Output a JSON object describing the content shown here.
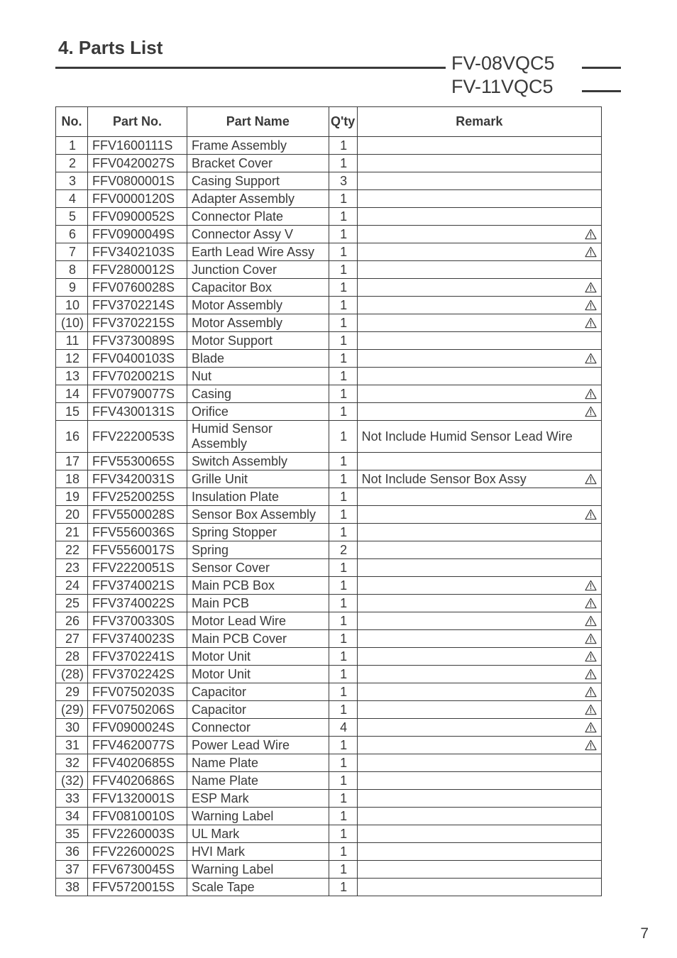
{
  "page_title": "4. Parts List",
  "models": [
    "FV-08VQC5",
    "FV-11VQC5"
  ],
  "page_number": "7",
  "columns": [
    "No.",
    "Part No.",
    "Part Name",
    "Q'ty",
    "Remark"
  ],
  "colors": {
    "text": "#3a3a3a",
    "border": "#3a3a3a",
    "background": "#ffffff"
  },
  "rows": [
    {
      "no": "1",
      "part": "FFV1600111S",
      "name": "Frame Assembly",
      "qty": "1",
      "rem": "",
      "warn": false
    },
    {
      "no": "2",
      "part": "FFV0420027S",
      "name": "Bracket Cover",
      "qty": "1",
      "rem": "",
      "warn": false
    },
    {
      "no": "3",
      "part": "FFV0800001S",
      "name": "Casing Support",
      "qty": "3",
      "rem": "",
      "warn": false
    },
    {
      "no": "4",
      "part": "FFV0000120S",
      "name": "Adapter Assembly",
      "qty": "1",
      "rem": "",
      "warn": false
    },
    {
      "no": "5",
      "part": "FFV0900052S",
      "name": "Connector Plate",
      "qty": "1",
      "rem": "",
      "warn": false
    },
    {
      "no": "6",
      "part": "FFV0900049S",
      "name": "Connector Assy V",
      "qty": "1",
      "rem": "",
      "warn": true
    },
    {
      "no": "7",
      "part": "FFV3402103S",
      "name": "Earth Lead Wire Assy",
      "qty": "1",
      "rem": "",
      "warn": true
    },
    {
      "no": "8",
      "part": "FFV2800012S",
      "name": "Junction Cover",
      "qty": "1",
      "rem": "",
      "warn": false
    },
    {
      "no": "9",
      "part": "FFV0760028S",
      "name": "Capacitor Box",
      "qty": "1",
      "rem": "",
      "warn": true
    },
    {
      "no": "10",
      "part": "FFV3702214S",
      "name": "Motor Assembly",
      "qty": "1",
      "rem": "",
      "warn": true
    },
    {
      "no": "(10)",
      "part": "FFV3702215S",
      "name": "Motor Assembly",
      "qty": "1",
      "rem": "",
      "warn": true
    },
    {
      "no": "11",
      "part": "FFV3730089S",
      "name": "Motor Support",
      "qty": "1",
      "rem": "",
      "warn": false
    },
    {
      "no": "12",
      "part": "FFV0400103S",
      "name": "Blade",
      "qty": "1",
      "rem": "",
      "warn": true
    },
    {
      "no": "13",
      "part": "FFV7020021S",
      "name": "Nut",
      "qty": "1",
      "rem": "",
      "warn": false
    },
    {
      "no": "14",
      "part": "FFV0790077S",
      "name": "Casing",
      "qty": "1",
      "rem": "",
      "warn": true
    },
    {
      "no": "15",
      "part": "FFV4300131S",
      "name": "Orifice",
      "qty": "1",
      "rem": "",
      "warn": true
    },
    {
      "no": "16",
      "part": "FFV2220053S",
      "name": "Humid Sensor Assembly",
      "qty": "1",
      "rem": "Not Include Humid Sensor Lead Wire",
      "warn": false
    },
    {
      "no": "17",
      "part": "FFV5530065S",
      "name": "Switch Assembly",
      "qty": "1",
      "rem": "",
      "warn": false
    },
    {
      "no": "18",
      "part": "FFV3420031S",
      "name": "Grille Unit",
      "qty": "1",
      "rem": "Not Include Sensor Box Assy",
      "warn": true
    },
    {
      "no": "19",
      "part": "FFV2520025S",
      "name": "Insulation Plate",
      "qty": "1",
      "rem": "",
      "warn": false
    },
    {
      "no": "20",
      "part": "FFV5500028S",
      "name": "Sensor Box Assembly",
      "qty": "1",
      "rem": "",
      "warn": true
    },
    {
      "no": "21",
      "part": "FFV5560036S",
      "name": "Spring Stopper",
      "qty": "1",
      "rem": "",
      "warn": false
    },
    {
      "no": "22",
      "part": "FFV5560017S",
      "name": "Spring",
      "qty": "2",
      "rem": "",
      "warn": false
    },
    {
      "no": "23",
      "part": "FFV2220051S",
      "name": "Sensor Cover",
      "qty": "1",
      "rem": "",
      "warn": false
    },
    {
      "no": "24",
      "part": "FFV3740021S",
      "name": "Main PCB Box",
      "qty": "1",
      "rem": "",
      "warn": true
    },
    {
      "no": "25",
      "part": "FFV3740022S",
      "name": "Main PCB",
      "qty": "1",
      "rem": "",
      "warn": true
    },
    {
      "no": "26",
      "part": "FFV3700330S",
      "name": "Motor Lead Wire",
      "qty": "1",
      "rem": "",
      "warn": true
    },
    {
      "no": "27",
      "part": "FFV3740023S",
      "name": "Main PCB Cover",
      "qty": "1",
      "rem": "",
      "warn": true
    },
    {
      "no": "28",
      "part": "FFV3702241S",
      "name": "Motor Unit",
      "qty": "1",
      "rem": "",
      "warn": true
    },
    {
      "no": "(28)",
      "part": "FFV3702242S",
      "name": "Motor Unit",
      "qty": "1",
      "rem": "",
      "warn": true
    },
    {
      "no": "29",
      "part": "FFV0750203S",
      "name": "Capacitor",
      "qty": "1",
      "rem": "",
      "warn": true
    },
    {
      "no": "(29)",
      "part": "FFV0750206S",
      "name": "Capacitor",
      "qty": "1",
      "rem": "",
      "warn": true
    },
    {
      "no": "30",
      "part": "FFV0900024S",
      "name": "Connector",
      "qty": "4",
      "rem": "",
      "warn": true
    },
    {
      "no": "31",
      "part": "FFV4620077S",
      "name": "Power Lead Wire",
      "qty": "1",
      "rem": "",
      "warn": true
    },
    {
      "no": "32",
      "part": "FFV4020685S",
      "name": "Name Plate",
      "qty": "1",
      "rem": "",
      "warn": false
    },
    {
      "no": "(32)",
      "part": "FFV4020686S",
      "name": "Name Plate",
      "qty": "1",
      "rem": "",
      "warn": false
    },
    {
      "no": "33",
      "part": "FFV1320001S",
      "name": "ESP Mark",
      "qty": "1",
      "rem": "",
      "warn": false
    },
    {
      "no": "34",
      "part": "FFV0810010S",
      "name": "Warning Label",
      "qty": "1",
      "rem": "",
      "warn": false
    },
    {
      "no": "35",
      "part": "FFV2260003S",
      "name": "UL Mark",
      "qty": "1",
      "rem": "",
      "warn": false
    },
    {
      "no": "36",
      "part": "FFV2260002S",
      "name": "HVI Mark",
      "qty": "1",
      "rem": "",
      "warn": false
    },
    {
      "no": "37",
      "part": "FFV6730045S",
      "name": "Warning Label",
      "qty": "1",
      "rem": "",
      "warn": false
    },
    {
      "no": "38",
      "part": "FFV5720015S",
      "name": "Scale Tape",
      "qty": "1",
      "rem": "",
      "warn": false
    }
  ]
}
